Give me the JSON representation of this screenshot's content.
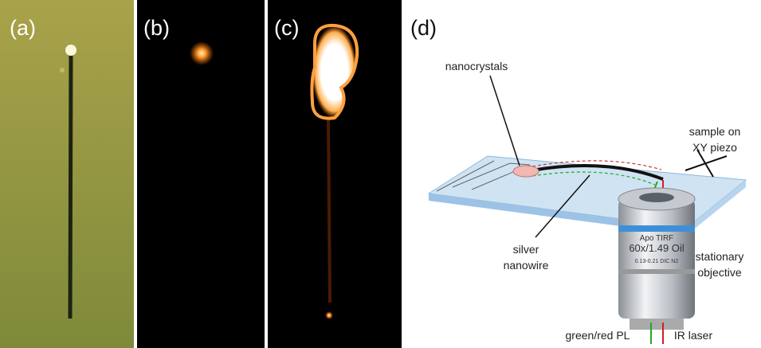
{
  "panels": [
    "(a)",
    "(b)",
    "(c)",
    "(d)"
  ],
  "annotations": [
    {
      "lines": [
        "nanocrystals"
      ]
    },
    {
      "lines": [
        "sample on",
        "XY piezo"
      ]
    },
    {
      "lines": [
        "silver",
        "nanowire"
      ]
    },
    {
      "lines": [
        "stationary",
        "objective"
      ]
    },
    {
      "lines": [
        "green/red PL"
      ]
    },
    {
      "lines": [
        "IR laser"
      ]
    }
  ],
  "objective_text": [
    "Apo TIRF",
    "60x/1.49 Oil",
    "0.13-0.21 DIC N2"
  ]
}
